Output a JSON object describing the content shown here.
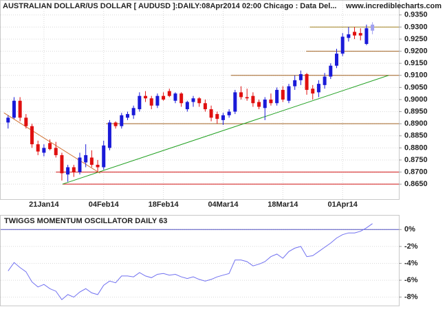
{
  "chart_data": [
    {
      "type": "candlestick",
      "title": "AUSTRALIAN DOLLAR/US DOLLAR [ AUDUSD ]:DAILY:08Apr2014 02:00 Chicago : Data Del...",
      "source": "www.incrediblecharts.com",
      "categories": [
        null,
        null,
        null,
        null,
        null,
        null,
        "21Jan14",
        null,
        null,
        null,
        null,
        null,
        null,
        null,
        null,
        null,
        "04Feb14",
        null,
        null,
        null,
        null,
        null,
        null,
        null,
        null,
        null,
        "18Feb14",
        null,
        null,
        null,
        null,
        null,
        null,
        null,
        null,
        null,
        "04Mar14",
        null,
        null,
        null,
        null,
        null,
        null,
        null,
        null,
        null,
        "18Mar14",
        null,
        null,
        null,
        null,
        null,
        null,
        null,
        null,
        null,
        "01Apr14",
        null,
        null,
        null,
        null,
        null
      ],
      "open": [
        0.8905,
        0.8925,
        0.8995,
        0.8925,
        0.889,
        0.8815,
        0.878,
        0.882,
        0.88,
        0.877,
        0.869,
        0.872,
        0.87,
        0.874,
        0.876,
        0.873,
        0.872,
        0.88,
        0.8905,
        0.889,
        0.8925,
        0.8935,
        0.896,
        0.9015,
        0.9005,
        0.8975,
        0.9015,
        0.9035,
        0.8995,
        0.9025,
        0.896,
        0.899,
        0.9005,
        0.8985,
        0.896,
        0.894,
        0.8915,
        0.8935,
        0.895,
        0.903,
        0.901,
        0.9015,
        0.899,
        0.8965,
        0.9,
        0.8985,
        0.904,
        0.8995,
        0.9055,
        0.908,
        0.9105,
        0.9045,
        0.903,
        0.906,
        0.9095,
        0.914,
        0.919,
        0.9255,
        0.928,
        0.9275,
        0.923,
        0.9285
      ],
      "high": [
        0.8935,
        0.901,
        0.901,
        0.894,
        0.89,
        0.883,
        0.8815,
        0.8835,
        0.8825,
        0.878,
        0.873,
        0.873,
        0.878,
        0.8815,
        0.879,
        0.875,
        0.883,
        0.8915,
        0.891,
        0.8945,
        0.895,
        0.8975,
        0.903,
        0.9035,
        0.9015,
        0.9025,
        0.903,
        0.9045,
        0.903,
        0.903,
        0.8995,
        0.9015,
        0.901,
        0.9,
        0.8975,
        0.895,
        0.8945,
        0.896,
        0.904,
        0.9055,
        0.9045,
        0.903,
        0.9,
        0.901,
        0.9025,
        0.905,
        0.9055,
        0.9065,
        0.91,
        0.912,
        0.911,
        0.906,
        0.908,
        0.911,
        0.915,
        0.921,
        0.9275,
        0.93,
        0.93,
        0.9295,
        0.931,
        0.932
      ],
      "low": [
        0.888,
        0.892,
        0.891,
        0.888,
        0.88,
        0.877,
        0.8765,
        0.879,
        0.876,
        0.8665,
        0.866,
        0.868,
        0.869,
        0.872,
        0.872,
        0.87,
        0.871,
        0.879,
        0.888,
        0.888,
        0.8915,
        0.892,
        0.895,
        0.899,
        0.896,
        0.8965,
        0.8995,
        0.901,
        0.8985,
        0.897,
        0.895,
        0.897,
        0.897,
        0.895,
        0.891,
        0.89,
        0.8895,
        0.8925,
        0.894,
        0.9,
        0.8995,
        0.897,
        0.896,
        0.8915,
        0.8975,
        0.8975,
        0.899,
        0.8985,
        0.904,
        0.906,
        0.902,
        0.9,
        0.901,
        0.9045,
        0.9085,
        0.913,
        0.918,
        0.924,
        0.925,
        0.9245,
        0.9225,
        0.927
      ],
      "close": [
        0.8925,
        0.8995,
        0.8925,
        0.889,
        0.8815,
        0.8785,
        0.88,
        0.8795,
        0.877,
        0.8695,
        0.872,
        0.87,
        0.876,
        0.877,
        0.873,
        0.872,
        0.881,
        0.8905,
        0.889,
        0.8935,
        0.894,
        0.8965,
        0.9015,
        0.9005,
        0.8975,
        0.9015,
        0.9,
        0.9015,
        0.9025,
        0.8985,
        0.899,
        0.9005,
        0.8985,
        0.896,
        0.8925,
        0.892,
        0.8935,
        0.895,
        0.903,
        0.901,
        0.9005,
        0.8985,
        0.897,
        0.9,
        0.8985,
        0.904,
        0.9,
        0.9055,
        0.908,
        0.9105,
        0.904,
        0.9025,
        0.9065,
        0.9095,
        0.914,
        0.919,
        0.926,
        0.927,
        0.9265,
        0.9265,
        0.9295,
        0.931
      ],
      "up_color": "#1a1ad8",
      "down_color": "#e01010",
      "last_color": "#a0a0f0",
      "xlim": [
        -1.24,
        65.42
      ],
      "ylim": [
        0.8588,
        0.9409
      ],
      "yticks": [
        {
          "value": 0.935,
          "label": "0.9350"
        },
        {
          "value": 0.93,
          "label": "0.9300"
        },
        {
          "value": 0.925,
          "label": "0.9250"
        },
        {
          "value": 0.92,
          "label": "0.9200"
        },
        {
          "value": 0.915,
          "label": "0.9150"
        },
        {
          "value": 0.91,
          "label": "0.9100"
        },
        {
          "value": 0.905,
          "label": "0.9050"
        },
        {
          "value": 0.9,
          "label": "0.9000"
        },
        {
          "value": 0.895,
          "label": "0.8950"
        },
        {
          "value": 0.89,
          "label": "0.8900"
        },
        {
          "value": 0.885,
          "label": "0.8850"
        },
        {
          "value": 0.88,
          "label": "0.8800"
        },
        {
          "value": 0.875,
          "label": "0.8750"
        },
        {
          "value": 0.87,
          "label": "0.8700"
        },
        {
          "value": 0.865,
          "label": "0.8650"
        }
      ],
      "grid": true,
      "lines": [
        {
          "x": [
            50.5,
            65.42
          ],
          "y": [
            0.93,
            0.93
          ],
          "color": "#a08020"
        },
        {
          "x": [
            49.9,
            65.42
          ],
          "y": [
            0.92,
            0.92
          ],
          "color": "#a06020"
        },
        {
          "x": [
            37.3,
            65.42
          ],
          "y": [
            0.91,
            0.91
          ],
          "color": "#a06020"
        },
        {
          "x": [
            16.4,
            65.42
          ],
          "y": [
            0.89,
            0.89
          ],
          "color": "#a06020"
        },
        {
          "x": [
            8.0,
            65.42
          ],
          "y": [
            0.87,
            0.87
          ],
          "color": "#d01010"
        },
        {
          "x": [
            9.1,
            65.42
          ],
          "y": [
            0.865,
            0.865
          ],
          "color": "#d01010"
        },
        {
          "x": [
            9.1,
            63.7
          ],
          "y": [
            0.865,
            0.91
          ],
          "color": "#20a020"
        },
        {
          "x": [
            -0.7,
            15.4
          ],
          "y": [
            0.8945,
            0.8695
          ],
          "color": "#d07030"
        }
      ]
    },
    {
      "type": "line",
      "title": "TWIGGS MOMENTUM OSCILLATOR DAILY 63",
      "values": [
        -4.9,
        -3.9,
        -4.5,
        -5.0,
        -6.2,
        -6.8,
        -6.5,
        -7.0,
        -7.3,
        -8.3,
        -7.7,
        -8.0,
        -7.4,
        -7.0,
        -7.5,
        -7.7,
        -6.6,
        -6.1,
        -6.3,
        -5.5,
        -5.5,
        -5.6,
        -5.1,
        -5.5,
        -5.7,
        -5.3,
        -5.2,
        -5.4,
        -5.3,
        -5.6,
        -5.8,
        -5.6,
        -5.9,
        -6.1,
        -5.9,
        -5.6,
        -5.4,
        -5.2,
        -3.6,
        -3.6,
        -3.8,
        -4.3,
        -4.1,
        -3.8,
        -3.2,
        -2.9,
        -3.4,
        -2.6,
        -2.2,
        -2.0,
        -3.2,
        -3.1,
        -2.6,
        -2.1,
        -1.6,
        -1.0,
        -0.6,
        -0.4,
        -0.4,
        -0.2,
        0.2,
        0.7
      ],
      "color": "#7070f0",
      "xlim": [
        -1.24,
        65.42
      ],
      "ylim": [
        -9.0,
        1.65
      ],
      "yticks": [
        {
          "value": 0,
          "label": "0%"
        },
        {
          "value": -2,
          "label": "-2%"
        },
        {
          "value": -4,
          "label": "-4%"
        },
        {
          "value": -6,
          "label": "-6%"
        },
        {
          "value": -8,
          "label": "-8%"
        }
      ],
      "hlines": [
        {
          "y": 0,
          "color": "#5050c0"
        }
      ],
      "grid": true
    }
  ]
}
